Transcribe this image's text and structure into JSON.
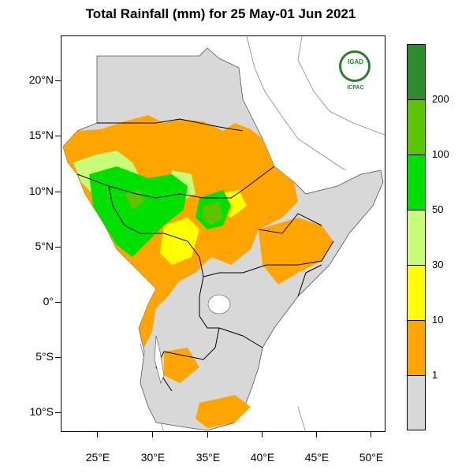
{
  "title": "Total Rainfall (mm) for 25 May-01 Jun 2021",
  "axes": {
    "lat_labels": [
      "20°N",
      "15°N",
      "10°N",
      "5°N",
      "0°",
      "5°S",
      "10°S"
    ],
    "lon_labels": [
      "25°E",
      "30°E",
      "35°E",
      "40°E",
      "45°E",
      "50°E"
    ]
  },
  "legend": {
    "categories": [
      {
        "label": "",
        "color": "#2e8b2e"
      },
      {
        "label": "200",
        "color": "#5cc400"
      },
      {
        "label": "100",
        "color": "#00e000"
      },
      {
        "label": "50",
        "color": "#c8fc78"
      },
      {
        "label": "30",
        "color": "#ffff00"
      },
      {
        "label": "10",
        "color": "#ffa500"
      },
      {
        "label": "1",
        "color": "#d8d8d8"
      }
    ]
  },
  "logo": {
    "name": "IGAD",
    "sub": "ICPAC"
  },
  "map": {
    "land_color": "#d8d8d8",
    "border_color": "#000000",
    "coast_color": "#888888"
  }
}
